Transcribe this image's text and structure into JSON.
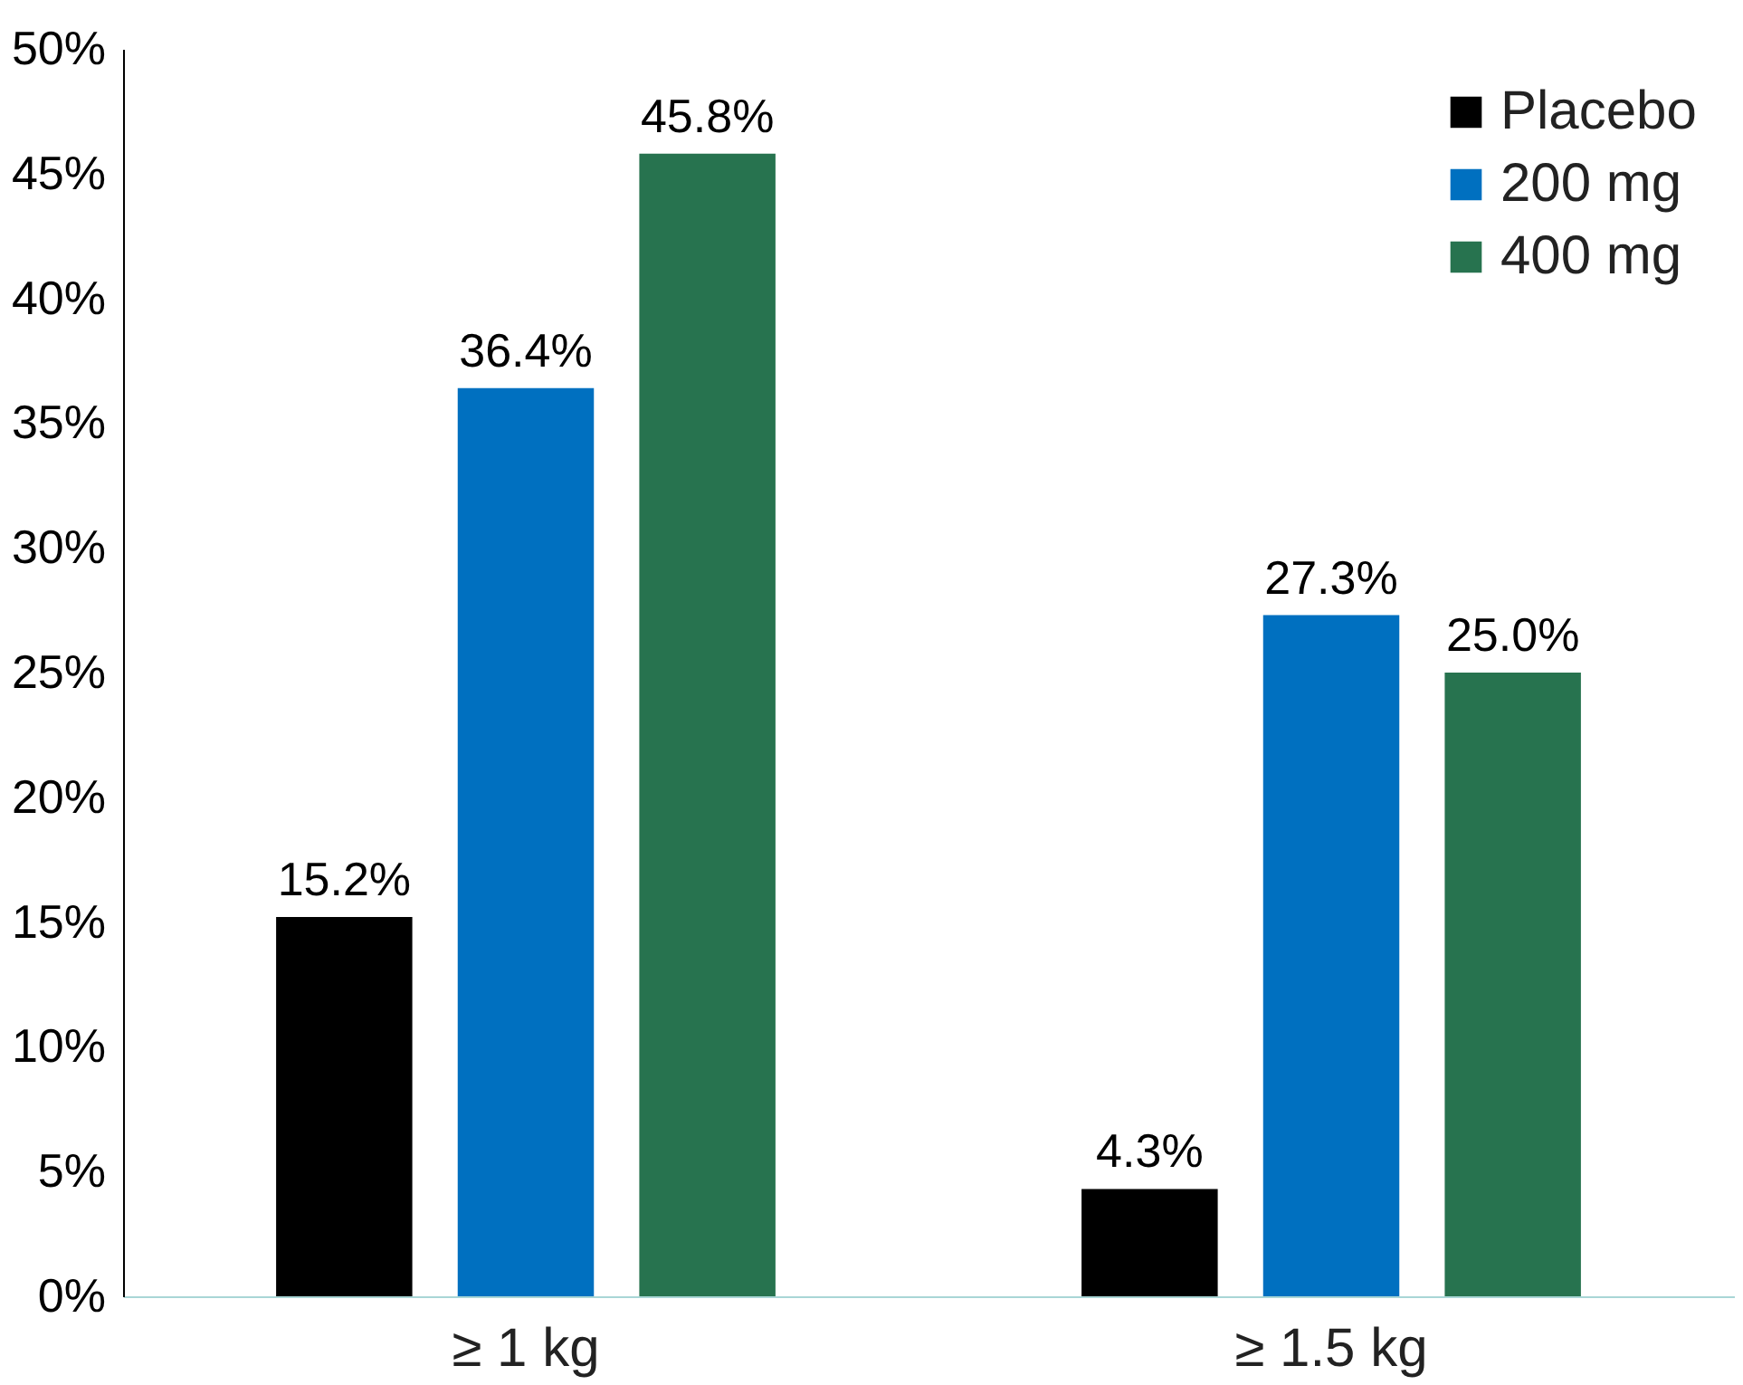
{
  "chart_data": {
    "type": "bar",
    "categories": [
      "≥ 1 kg",
      "≥ 1.5 kg"
    ],
    "series": [
      {
        "name": "Placebo",
        "color": "#000000",
        "values": [
          15.2,
          4.3
        ],
        "value_labels": [
          "15.2%",
          "4.3%"
        ]
      },
      {
        "name": "200 mg",
        "color": "#0070c0",
        "values": [
          36.4,
          27.3
        ],
        "value_labels": [
          "36.4%",
          "27.3%"
        ]
      },
      {
        "name": "400 mg",
        "color": "#27734f",
        "values": [
          45.8,
          25.0
        ],
        "value_labels": [
          "45.8%",
          "25.0%"
        ]
      }
    ],
    "ylim": [
      0,
      50
    ],
    "yticks": [
      {
        "value": 0,
        "label": "0%"
      },
      {
        "value": 5,
        "label": "5%"
      },
      {
        "value": 10,
        "label": "10%"
      },
      {
        "value": 15,
        "label": "15%"
      },
      {
        "value": 20,
        "label": "20%"
      },
      {
        "value": 25,
        "label": "25%"
      },
      {
        "value": 30,
        "label": "30%"
      },
      {
        "value": 35,
        "label": "35%"
      },
      {
        "value": 40,
        "label": "40%"
      },
      {
        "value": 45,
        "label": "45%"
      },
      {
        "value": 50,
        "label": "50%"
      }
    ],
    "grid": false,
    "legend": "top right"
  }
}
